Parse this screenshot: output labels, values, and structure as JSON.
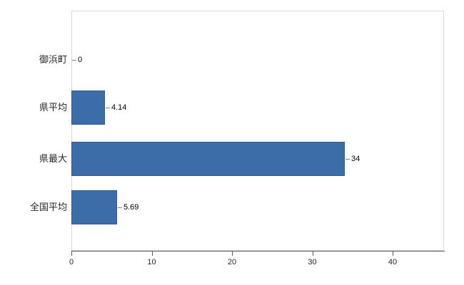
{
  "chart_data": {
    "type": "bar",
    "orientation": "horizontal",
    "title": "",
    "xlabel": "",
    "ylabel": "",
    "categories": [
      "御浜町",
      "県平均",
      "県最大",
      "全国平均"
    ],
    "values": [
      0,
      4.14,
      34,
      5.69
    ],
    "value_labels": [
      "0",
      "4.14",
      "34",
      "5.69"
    ],
    "x_ticks": [
      "0",
      "10",
      "20",
      "30",
      "40"
    ],
    "x_tick_values": [
      0,
      10,
      20,
      30,
      40
    ],
    "xlim": [
      0,
      40
    ],
    "grid": false,
    "legend": false,
    "bar_color": "#3c6da8",
    "bar_border_color": "#305c95",
    "axis_color": "#595959",
    "plot_border_color": "#d9d9d9",
    "background_color": "#ffffff"
  }
}
